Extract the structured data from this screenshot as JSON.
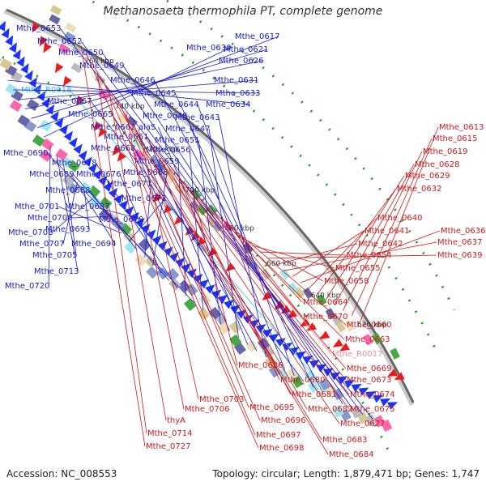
{
  "title": "Methanosaeta thermophila PT, complete genome",
  "accession": "Accession: NC_008553",
  "stats": "Topology: circular; Length: 1,879,471 bp; Genes: 1,747",
  "colors": {
    "left_label": "#1a1acc",
    "right_label": "#cc1a1a",
    "rna_left": "#33bbee",
    "rna_right": "#ee88aa",
    "forward_gene": "#1a33ff",
    "reverse_gene": "#ee1a1a",
    "axis": "#888888"
  },
  "ticks": [
    {
      "label": "620 kbp",
      "angle": 30
    },
    {
      "label": "640 kbp",
      "angle": 34
    },
    {
      "label": "660 kbp",
      "angle": 38
    },
    {
      "label": "680 kbp",
      "angle": 42
    },
    {
      "label": "700 kbp",
      "angle": 46
    },
    {
      "label": "720 kbp",
      "angle": 50
    },
    {
      "label": "740 kbp",
      "angle": 54
    },
    {
      "label": "760 kbp",
      "angle": 58
    }
  ],
  "left_labels": [
    {
      "text": "Mthe_0653",
      "angle": 31.2
    },
    {
      "text": "Mthe_0652",
      "angle": 31.0
    },
    {
      "text": "Mthe_0650",
      "angle": 30.8
    },
    {
      "text": "Mthe_0649",
      "angle": 30.6
    },
    {
      "text": "Mthe_R0018",
      "angle": 30.4,
      "rna": true
    },
    {
      "text": "Mthe_0646",
      "angle": 30.2
    },
    {
      "text": "Mthe_0645",
      "angle": 30.0
    },
    {
      "text": "Mthe_0667",
      "angle": 29.9
    },
    {
      "text": "Mthe_0644",
      "angle": 29.8
    },
    {
      "text": "Mthe_0648",
      "angle": 29.7
    },
    {
      "text": "Mthe_0665",
      "angle": 29.6
    },
    {
      "text": "Mthe_0643",
      "angle": 29.5
    },
    {
      "text": "Mthe_0662",
      "angle": 29.4
    },
    {
      "text": "alaS",
      "angle": 29.35
    },
    {
      "text": "Mthe_0647",
      "angle": 29.3
    },
    {
      "text": "Mthe_0661",
      "angle": 29.2
    },
    {
      "text": "Mthe_0651",
      "angle": 29.15
    },
    {
      "text": "Mthe_0668",
      "angle": 29.1
    },
    {
      "text": "Mthe_0656",
      "angle": 29.05
    },
    {
      "text": "Mthe_0690",
      "angle": 29.0
    },
    {
      "text": "Mthe_0659",
      "angle": 28.9
    },
    {
      "text": "Mthe_0678",
      "angle": 28.85
    },
    {
      "text": "Mthe_0689",
      "angle": 28.8
    },
    {
      "text": "Mthe_0676",
      "angle": 28.75
    },
    {
      "text": "Mthe_0666",
      "angle": 28.7
    },
    {
      "text": "Mthe_0671",
      "angle": 28.65
    },
    {
      "text": "Mthe_0688",
      "angle": 28.6
    },
    {
      "text": "Mthe_0672",
      "angle": 28.5
    },
    {
      "text": "Mthe_0701",
      "angle": 28.4
    },
    {
      "text": "Mthe_0687",
      "angle": 28.35
    },
    {
      "text": "Mthe_0700",
      "angle": 28.3
    },
    {
      "text": "Mthe_0679",
      "angle": 28.2
    },
    {
      "text": "Mthe_0708",
      "angle": 28.1
    },
    {
      "text": "Mthe_0693",
      "angle": 28.05
    },
    {
      "text": "Mthe_0707",
      "angle": 28.0
    },
    {
      "text": "Mthe_0694",
      "angle": 27.95
    },
    {
      "text": "Mthe_0705",
      "angle": 27.9
    },
    {
      "text": "Mthe_0713",
      "angle": 27.8
    },
    {
      "text": "Mthe_0720",
      "angle": 27.7
    },
    {
      "text": "Mthe_0630",
      "angle": 31.4
    },
    {
      "text": "Mthe_0617",
      "angle": 31.6
    },
    {
      "text": "Mthe_0621",
      "angle": 31.5
    },
    {
      "text": "Mthe_0626",
      "angle": 31.3
    },
    {
      "text": "Mthe_0631",
      "angle": 31.1
    },
    {
      "text": "Mthe_0633",
      "angle": 30.9
    },
    {
      "text": "Mthe_0634",
      "angle": 30.7
    }
  ],
  "right_labels": [
    {
      "text": "Mthe_0613"
    },
    {
      "text": "Mthe_0615"
    },
    {
      "text": "Mthe_0619"
    },
    {
      "text": "Mthe_0628"
    },
    {
      "text": "Mthe_0629"
    },
    {
      "text": "Mthe_0632"
    },
    {
      "text": "Mthe_0640"
    },
    {
      "text": "Mthe_0636"
    },
    {
      "text": "Mthe_0641"
    },
    {
      "text": "Mthe_0637"
    },
    {
      "text": "Mthe_0642"
    },
    {
      "text": "Mthe_0639"
    },
    {
      "text": "Mthe_0654"
    },
    {
      "text": "Mthe_0655"
    },
    {
      "text": "Mthe_0658"
    },
    {
      "text": "Mthe_0664"
    },
    {
      "text": "Mthe_0670"
    },
    {
      "text": "Mthe_0660"
    },
    {
      "text": "Mthe_0663"
    },
    {
      "text": "Mthe_R0017",
      "rna": true
    },
    {
      "text": "Mthe_0669"
    },
    {
      "text": "Mthe_0686"
    },
    {
      "text": "Mthe_0673"
    },
    {
      "text": "Mthe_0680"
    },
    {
      "text": "Mthe_0674"
    },
    {
      "text": "Mthe_0681"
    },
    {
      "text": "Mthe_0675"
    },
    {
      "text": "Mthe_0682"
    },
    {
      "text": "Mthe_0677"
    },
    {
      "text": "Mthe_0703"
    },
    {
      "text": "Mthe_0695"
    },
    {
      "text": "Mthe_0706"
    },
    {
      "text": "Mthe_0696"
    },
    {
      "text": "Mthe_0683"
    },
    {
      "text": "thyA"
    },
    {
      "text": "Mthe_0697"
    },
    {
      "text": "Mthe_0714"
    },
    {
      "text": "Mthe_0684"
    },
    {
      "text": "Mthe_0698"
    },
    {
      "text": "Mthe_0727"
    }
  ]
}
